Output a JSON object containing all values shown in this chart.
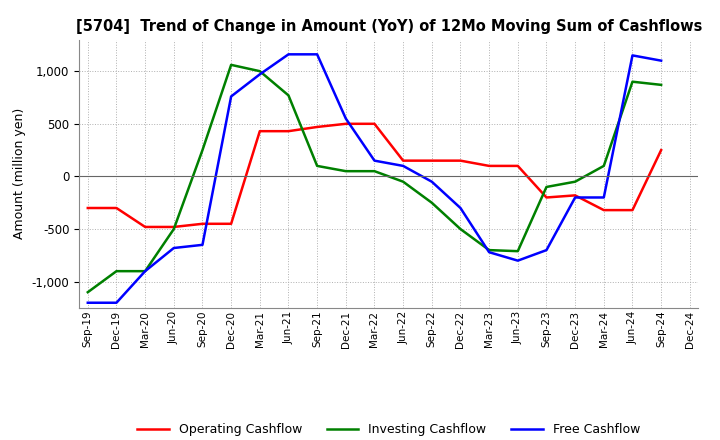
{
  "title": "[5704]  Trend of Change in Amount (YoY) of 12Mo Moving Sum of Cashflows",
  "ylabel": "Amount (million yen)",
  "background_color": "#ffffff",
  "grid_color": "#b0b0b0",
  "ylim": [
    -1250,
    1300
  ],
  "yticks": [
    -1000,
    -500,
    0,
    500,
    1000
  ],
  "x_labels": [
    "Sep-19",
    "Dec-19",
    "Mar-20",
    "Jun-20",
    "Sep-20",
    "Dec-20",
    "Mar-21",
    "Jun-21",
    "Sep-21",
    "Dec-21",
    "Mar-22",
    "Jun-22",
    "Sep-22",
    "Dec-22",
    "Mar-23",
    "Jun-23",
    "Sep-23",
    "Dec-23",
    "Mar-24",
    "Jun-24",
    "Sep-24",
    "Dec-24"
  ],
  "operating": [
    -300,
    -300,
    -480,
    -480,
    -450,
    -450,
    430,
    430,
    470,
    500,
    500,
    150,
    150,
    150,
    100,
    100,
    -200,
    -180,
    -320,
    -320,
    250,
    null
  ],
  "investing": [
    -1100,
    -900,
    -900,
    -500,
    250,
    1060,
    1000,
    770,
    100,
    50,
    50,
    -50,
    -250,
    -500,
    -700,
    -710,
    -100,
    -50,
    100,
    900,
    870,
    null
  ],
  "free": [
    -1200,
    -1200,
    -900,
    -680,
    -650,
    760,
    970,
    1160,
    1160,
    550,
    150,
    100,
    -50,
    -300,
    -720,
    -800,
    -700,
    -200,
    -200,
    1150,
    1100,
    null
  ],
  "operating_color": "#ff0000",
  "investing_color": "#008000",
  "free_color": "#0000ff",
  "legend_labels": [
    "Operating Cashflow",
    "Investing Cashflow",
    "Free Cashflow"
  ]
}
